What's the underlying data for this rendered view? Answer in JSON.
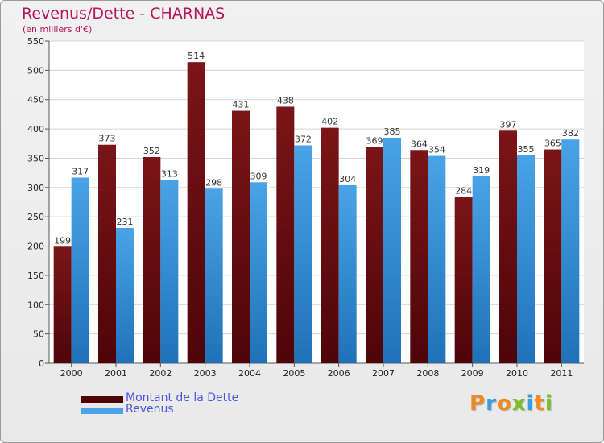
{
  "header": {
    "title": "Revenus/Dette - CHARNAS",
    "subtitle": "(en milliers d'€)"
  },
  "colors": {
    "dette": "#7a1518",
    "dette_dark": "#4e0508",
    "revenus": "#4aa3e6",
    "revenus_dark": "#1f72b8"
  },
  "chart_data": {
    "type": "bar",
    "categories": [
      "2000",
      "2001",
      "2002",
      "2003",
      "2004",
      "2005",
      "2006",
      "2007",
      "2008",
      "2009",
      "2010",
      "2011"
    ],
    "series": [
      {
        "name": "Montant de la Dette",
        "values": [
          199,
          373,
          352,
          514,
          431,
          438,
          402,
          369,
          364,
          284,
          397,
          365
        ]
      },
      {
        "name": "Revenus",
        "values": [
          317,
          231,
          313,
          298,
          309,
          372,
          304,
          385,
          354,
          319,
          355,
          382
        ]
      }
    ],
    "ylim": [
      0,
      550
    ],
    "yticks": [
      0,
      50,
      100,
      150,
      200,
      250,
      300,
      350,
      400,
      450,
      500,
      550
    ],
    "grid": true,
    "legend_position": "bottom-left"
  },
  "logo": {
    "letters": [
      "P",
      "r",
      "o",
      "x",
      "i",
      "t",
      "i"
    ],
    "colors": [
      "#f08a1c",
      "#3a9de0",
      "#f08a1c",
      "#7bbf2a",
      "#3a9de0",
      "#f08a1c",
      "#7bbf2a"
    ]
  }
}
